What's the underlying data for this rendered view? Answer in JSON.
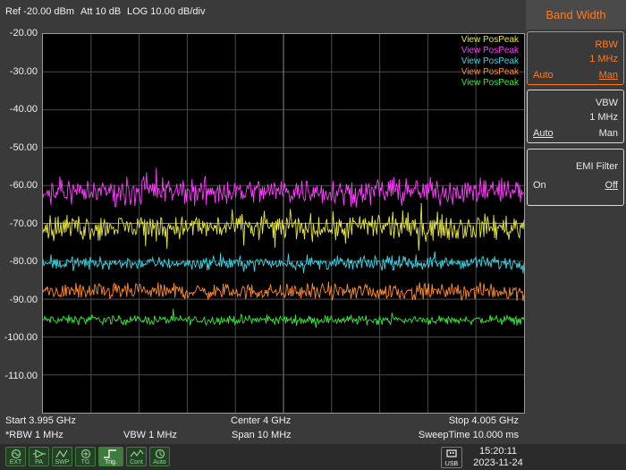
{
  "header": {
    "ref": "Ref -20.00 dBm",
    "att": "Att 10 dB",
    "scale": "LOG 10.00 dB/div"
  },
  "yaxis": {
    "labels": [
      "-20.00",
      "-30.00",
      "-40.00",
      "-50.00",
      "-60.00",
      "-70.00",
      "-80.00",
      "-90.00",
      "-100.00",
      "-110.00"
    ]
  },
  "legend": [
    {
      "label": "View PosPeak",
      "color": "#e8e83a"
    },
    {
      "label": "View PosPeak",
      "color": "#ff3cff"
    },
    {
      "label": "View PosPeak",
      "color": "#3ad8e8"
    },
    {
      "label": "View PosPeak",
      "color": "#ff8c2a"
    },
    {
      "label": "View PosPeak",
      "color": "#3ae83a"
    }
  ],
  "chart_data": {
    "type": "line",
    "ylim": [
      -120,
      -20
    ],
    "x_start_ghz": 3.995,
    "x_stop_ghz": 4.005,
    "series": [
      {
        "color": "#ff3cff",
        "mean": -61.5,
        "spread": 5
      },
      {
        "color": "#e8e83a",
        "mean": -71,
        "spread": 5
      },
      {
        "color": "#3ad8e8",
        "mean": -80.5,
        "spread": 2.5
      },
      {
        "color": "#ff8c2a",
        "mean": -88,
        "spread": 3
      },
      {
        "color": "#3ae83a",
        "mean": -95.5,
        "spread": 1.8
      }
    ]
  },
  "footer": {
    "start": "Start 3.995 GHz",
    "center": "Center 4 GHz",
    "stop": "Stop 4.005 GHz",
    "rbw": "*RBW 1 MHz",
    "vbw": "VBW 1 MHz",
    "span": "Span 10 MHz",
    "sweep": "SweepTime 10.000 ms"
  },
  "statusbar": {
    "icons": [
      {
        "name": "ext-icon",
        "label": "EXT"
      },
      {
        "name": "pa-icon",
        "label": "PA"
      },
      {
        "name": "swp-icon",
        "label": "SWP"
      },
      {
        "name": "tg-icon",
        "label": "TG"
      },
      {
        "name": "trig-icon",
        "label": "Trig."
      },
      {
        "name": "cont-icon",
        "label": "Cont"
      },
      {
        "name": "auto-icon",
        "label": "Auto"
      }
    ],
    "usb_label": "USB",
    "time": "15:20:11",
    "date": "2023-11-24"
  },
  "side": {
    "title": "Band Width",
    "rbw": {
      "label": "RBW",
      "value": "1 MHz",
      "auto": "Auto",
      "man": "Man"
    },
    "vbw": {
      "label": "VBW",
      "value": "1 MHz",
      "auto": "Auto",
      "man": "Man"
    },
    "emi": {
      "label": "EMI Filter",
      "on": "On",
      "off": "Off"
    }
  }
}
